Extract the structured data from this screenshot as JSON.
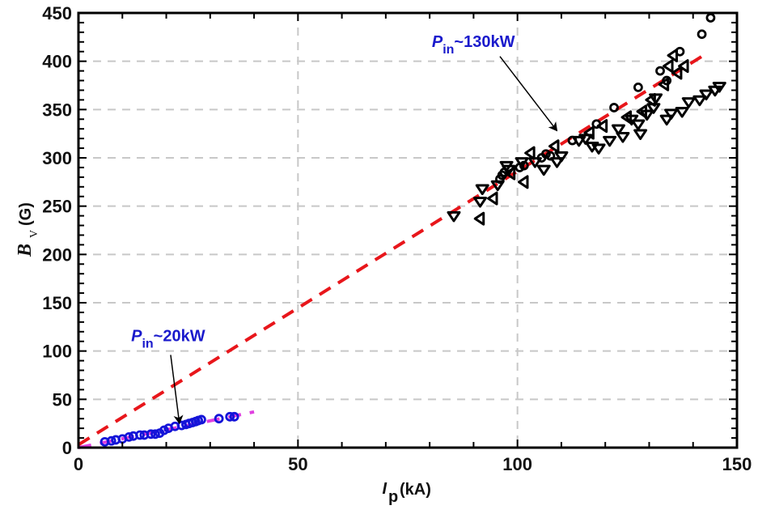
{
  "chart_data": {
    "type": "scatter",
    "title": "",
    "xlabel": "I_p (kA)",
    "xlabel_main": "I",
    "xlabel_sub": "p",
    "xlabel_unit": "(kA)",
    "ylabel": "B_V (G)",
    "ylabel_main": "B",
    "ylabel_sub": "V",
    "ylabel_unit": "(G)",
    "xlim": [
      0,
      150
    ],
    "ylim": [
      0,
      450
    ],
    "xticks": [
      0,
      50,
      100,
      150
    ],
    "yticks": [
      0,
      50,
      100,
      150,
      200,
      250,
      300,
      350,
      400,
      450
    ],
    "grid": true,
    "legend": "none",
    "colors": {
      "fit_130kw": "#e8161b",
      "fit_20kw": "#e040e0",
      "circles_20kw": "#1414d8",
      "markers_130kw": "#000000",
      "grid": "#c8c8c8",
      "annotation": "#1a1acc"
    },
    "annotations": [
      {
        "label_main": "P",
        "label_sub": "in",
        "label_rest": "~130kW",
        "text_x": 80.5,
        "text_y": 415,
        "arrow_from": [
          96,
          405
        ],
        "arrow_to": [
          109,
          328
        ]
      },
      {
        "label_main": "P",
        "label_sub": "in",
        "label_rest": "~20kW",
        "text_x": 12,
        "text_y": 110,
        "arrow_from": [
          21,
          96
        ],
        "arrow_to": [
          23,
          25
        ]
      }
    ],
    "series": [
      {
        "name": "Fit P_in~130kW",
        "kind": "dashed-line",
        "x": [
          0,
          142
        ],
        "y": [
          3,
          405
        ]
      },
      {
        "name": "Fit P_in~20kW",
        "kind": "dashed-line",
        "x": [
          0,
          40
        ],
        "y": [
          0,
          37
        ]
      },
      {
        "name": "P_in~20kW circles",
        "kind": "circle",
        "x": [
          6,
          7.5,
          8.5,
          10,
          11.5,
          12.5,
          14,
          15,
          16.5,
          17.5,
          18.5,
          19.5,
          20.5,
          22,
          23.5,
          24.5,
          25.2,
          26,
          26.7,
          27.3,
          28,
          32,
          34.5,
          35.5
        ],
        "y": [
          6,
          7,
          8,
          9,
          11,
          12,
          13,
          13,
          14,
          14,
          15,
          18,
          20,
          22,
          23,
          24,
          25,
          26,
          27,
          28,
          29,
          30,
          32,
          32
        ]
      },
      {
        "name": "P_in~130kW circles",
        "kind": "circle",
        "x": [
          96,
          96.5,
          97,
          100.5,
          101.5,
          105.5,
          106.5,
          107.5,
          112.5,
          118,
          122,
          127.5,
          132.5,
          134,
          137,
          142,
          144
        ],
        "y": [
          278,
          282,
          285,
          290,
          292,
          300,
          304,
          302,
          318,
          335,
          352,
          373,
          390,
          380,
          410,
          428,
          445
        ]
      },
      {
        "name": "P_in~130kW down-triangles",
        "kind": "triangle-down",
        "x": [
          85.5,
          91.5,
          92,
          95.5,
          97.5,
          101,
          106,
          109,
          110,
          114,
          115.5,
          117,
          118.5,
          121,
          123,
          124,
          127.5,
          128,
          129.5,
          131,
          134,
          135,
          137.5,
          139,
          141.5,
          143,
          145,
          146,
          98,
          104,
          126,
          131.5
        ],
        "y": [
          240,
          255,
          268,
          272,
          292,
          296,
          288,
          296,
          302,
          318,
          320,
          312,
          310,
          318,
          330,
          322,
          335,
          325,
          345,
          352,
          340,
          346,
          348,
          358,
          360,
          366,
          370,
          374,
          288,
          296,
          340,
          362
        ]
      },
      {
        "name": "P_in~130kW left-triangles",
        "kind": "triangle-left",
        "x": [
          91.5,
          94.5,
          101.5,
          103,
          108.5,
          116.5,
          119.5,
          125,
          128.5,
          130.5,
          133.5,
          134.5,
          135.5,
          136.5,
          138,
          98.5
        ],
        "y": [
          237,
          258,
          275,
          305,
          312,
          326,
          333,
          342,
          348,
          360,
          376,
          395,
          406,
          388,
          395,
          284
        ]
      }
    ]
  }
}
